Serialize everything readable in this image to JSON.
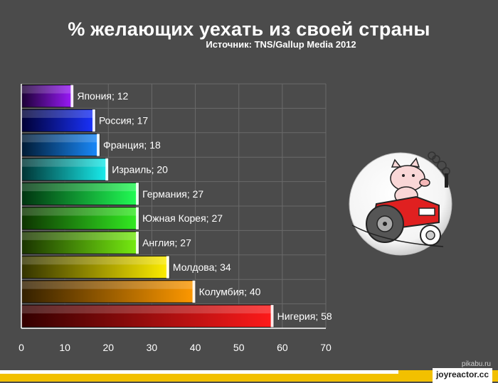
{
  "title": "% желающих уехать из своей страны",
  "subtitle": "Источник: TNS/Gallup Media 2012",
  "footer": {
    "site": "joyreactor.cc",
    "watermark": "pikabu.ru"
  },
  "colors": {
    "background": "#4b4b4b",
    "grid": "#6a6a6a",
    "axis": "#ffffff",
    "footer_bar": "#f2c000"
  },
  "illustration": {
    "icon": "pig-on-tractor-badge-icon"
  },
  "chart_data": {
    "type": "bar",
    "orientation": "horizontal",
    "title": "% желающих уехать из своей страны",
    "subtitle": "Источник: TNS/Gallup Media 2012",
    "xlim": [
      0,
      70
    ],
    "xticks": [
      0,
      10,
      20,
      30,
      40,
      50,
      60,
      70
    ],
    "grid": true,
    "categories": [
      "Япония",
      "Россия",
      "Франция",
      "Израиль",
      "Германия",
      "Южная Корея",
      "Англия",
      "Молдова",
      "Колумбия",
      "Нигерия"
    ],
    "values": [
      12,
      17,
      18,
      20,
      27,
      27,
      27,
      34,
      40,
      58
    ],
    "labels": [
      "Япония; 12",
      "Россия; 17",
      "Франция; 18",
      "Израиль; 20",
      "Германия; 27",
      "Южная Корея; 27",
      "Англия; 27",
      "Молдова; 34",
      "Колумбия; 40",
      "Нигерия; 58"
    ],
    "bar_colors": [
      [
        "#1b0033",
        "#9d1aff"
      ],
      [
        "#000033",
        "#1a33ff"
      ],
      [
        "#001a33",
        "#1a8cff"
      ],
      [
        "#003333",
        "#19f0f0"
      ],
      [
        "#003310",
        "#22ff55"
      ],
      [
        "#0d3300",
        "#33ee22"
      ],
      [
        "#1a3300",
        "#77ee11"
      ],
      [
        "#333300",
        "#ffee00"
      ],
      [
        "#332000",
        "#ff9900"
      ],
      [
        "#330000",
        "#ff1a1a"
      ]
    ]
  }
}
